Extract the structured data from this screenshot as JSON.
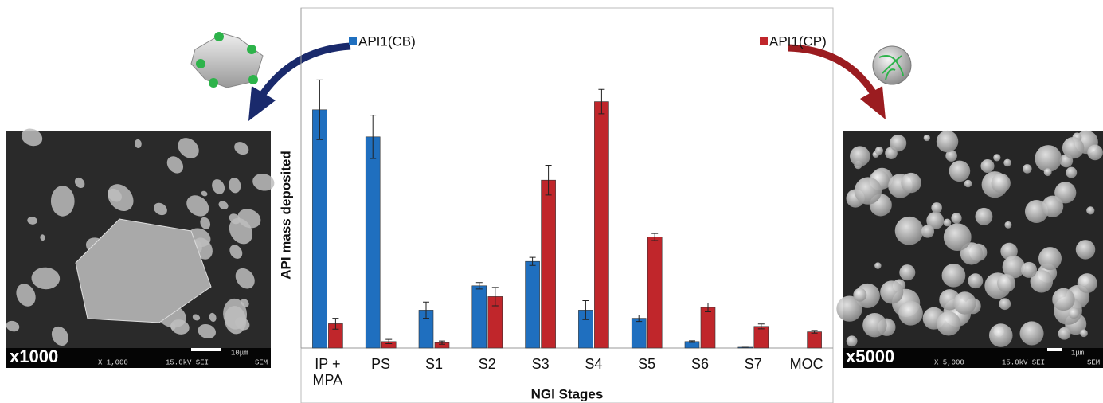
{
  "chart_data": {
    "type": "bar",
    "x_label": "NGI Stages",
    "y_label": "API mass deposited",
    "categories": [
      "IP + MPA",
      "PS",
      "S1",
      "S2",
      "S3",
      "S4",
      "S5",
      "S6",
      "S7",
      "MOC"
    ],
    "series": [
      {
        "name": "API1(CB)",
        "color": "#1f6fbf",
        "values": [
          88,
          78,
          14,
          23,
          32,
          14,
          11,
          2.4,
          0.3,
          null
        ],
        "errors": [
          11,
          8,
          3,
          1.2,
          1.5,
          3.5,
          1.2,
          0.3,
          0,
          null
        ]
      },
      {
        "name": "API1(CP)",
        "color": "#c0262b",
        "values": [
          9,
          2.4,
          2,
          19,
          62,
          91,
          41,
          15,
          8,
          6
        ],
        "errors": [
          2,
          0.8,
          0.6,
          3.4,
          5.5,
          4.5,
          1.3,
          1.6,
          0.9,
          0.5
        ]
      }
    ],
    "ylim": [
      0,
      100
    ],
    "grid": false
  },
  "images": [
    {
      "magnification": "x1000",
      "caption": [
        "X 1,000",
        "15.0kV SEI",
        "SEM"
      ],
      "scale": "10μm"
    },
    {
      "magnification": "x5000",
      "caption": [
        "X 5,000",
        "15.0kV SEI",
        "SEM"
      ],
      "scale": "1μm"
    }
  ]
}
